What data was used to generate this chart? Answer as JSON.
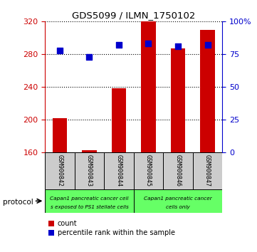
{
  "title": "GDS5099 / ILMN_1750102",
  "samples": [
    "GSM900842",
    "GSM900843",
    "GSM900844",
    "GSM900845",
    "GSM900846",
    "GSM900847"
  ],
  "counts": [
    202,
    163,
    238,
    320,
    287,
    310
  ],
  "percentile_ranks": [
    78,
    73,
    82,
    83,
    81,
    82
  ],
  "y_min": 160,
  "y_max": 320,
  "y_ticks": [
    160,
    200,
    240,
    280,
    320
  ],
  "y2_ticks": [
    0,
    25,
    50,
    75,
    100
  ],
  "y2_labels": [
    "0",
    "25",
    "50",
    "75",
    "100%"
  ],
  "bar_color": "#cc0000",
  "dot_color": "#0000cc",
  "left_tick_color": "#cc0000",
  "right_tick_color": "#0000cc",
  "protocol_color": "#66ff66",
  "sample_box_color": "#cccccc",
  "group1_label_line1": "Capan1 pancreatic cancer cell",
  "group1_label_line2": "s exposed to PS1 stellate cells",
  "group2_label_line1": "Capan1 pancreatic cancer",
  "group2_label_line2": "cells only"
}
